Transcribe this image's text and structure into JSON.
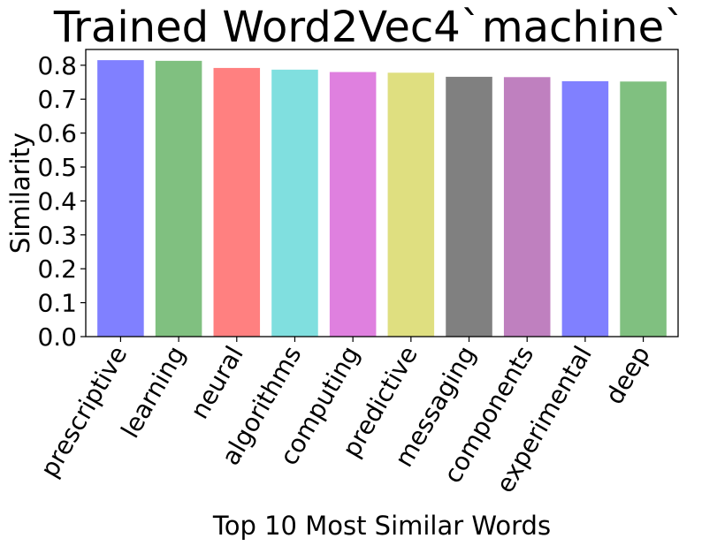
{
  "chart_data": {
    "type": "bar",
    "title": "Trained Word2Vec4`machine`",
    "xlabel": "Top 10 Most Similar Words",
    "ylabel": "Similarity",
    "categories": [
      "prescriptive",
      "learning",
      "neural",
      "algorithms",
      "computing",
      "predictive",
      "messaging",
      "components",
      "experimental",
      "deep"
    ],
    "values": [
      0.815,
      0.813,
      0.792,
      0.787,
      0.78,
      0.778,
      0.766,
      0.765,
      0.753,
      0.752
    ],
    "ylim": [
      0,
      0.8465
    ],
    "yticks": [
      "0.0",
      "0.1",
      "0.2",
      "0.3",
      "0.4",
      "0.5",
      "0.6",
      "0.7",
      "0.8"
    ],
    "colors": [
      "#8080ff",
      "#80c080",
      "#ff8080",
      "#80dfdf",
      "#df80df",
      "#dfdf80",
      "#808080",
      "#bf80bf",
      "#8080ff",
      "#80c080"
    ],
    "grid": false,
    "legend": "none"
  }
}
